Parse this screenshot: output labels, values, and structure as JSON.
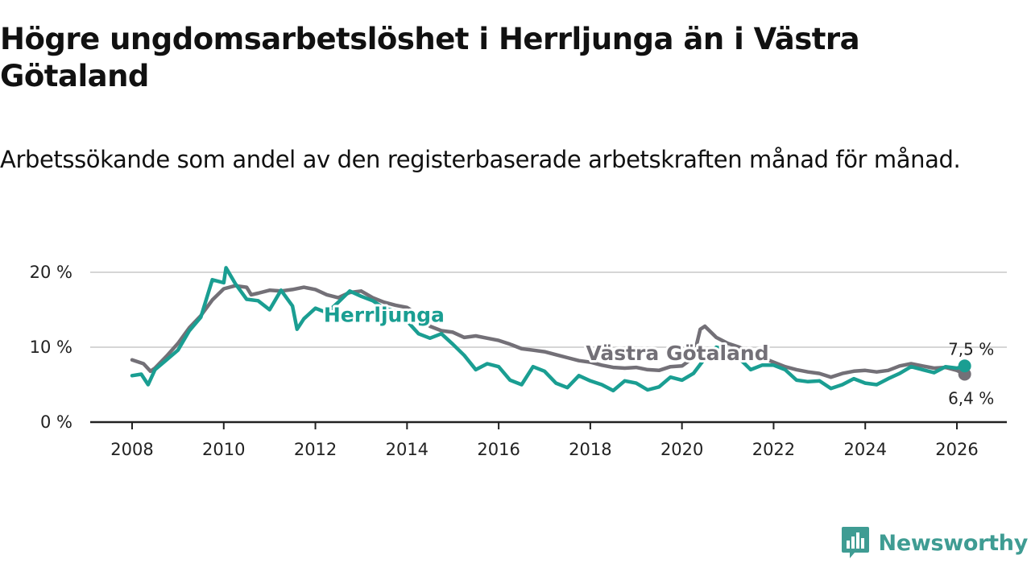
{
  "title": "Högre ungdomsarbetslöshet i Herrljunga än i Västra Götaland",
  "subtitle": "Arbetssökande som andel av den registerbaserade arbetskraften månad för månad.",
  "brand": {
    "name": "Newsworthy",
    "logo_icon": "newsworthy-chart-icon",
    "color": "#3f9c93"
  },
  "chart_data": {
    "type": "line",
    "title": "Högre ungdomsarbetslöshet i Herrljunga än i Västra Götaland",
    "subtitle": "Arbetssökande som andel av den registerbaserade arbetskraften månad för månad.",
    "xlabel": "",
    "ylabel": "",
    "xlim": [
      2007.5,
      2027.1
    ],
    "ylim": [
      0,
      20
    ],
    "grid": true,
    "x_ticks": [
      2008,
      2010,
      2012,
      2014,
      2016,
      2018,
      2020,
      2022,
      2024,
      2026
    ],
    "x_tick_labels": [
      "2008",
      "2010",
      "2012",
      "2014",
      "2016",
      "2018",
      "2020",
      "2022",
      "2024",
      "2026"
    ],
    "y_ticks": [
      0,
      10,
      20
    ],
    "y_tick_labels": [
      "0 %",
      "10 %",
      "20 %"
    ],
    "series": [
      {
        "name": "Västra Götaland",
        "color": "#737077",
        "end_label": "6,4 %",
        "points": [
          [
            2008.0,
            8.3
          ],
          [
            2008.25,
            7.8
          ],
          [
            2008.4,
            6.8
          ],
          [
            2008.5,
            7.2
          ],
          [
            2008.75,
            8.8
          ],
          [
            2009.0,
            10.5
          ],
          [
            2009.25,
            12.6
          ],
          [
            2009.5,
            14.2
          ],
          [
            2009.75,
            16.3
          ],
          [
            2010.0,
            17.8
          ],
          [
            2010.25,
            18.2
          ],
          [
            2010.5,
            18.0
          ],
          [
            2010.6,
            17.0
          ],
          [
            2010.75,
            17.2
          ],
          [
            2011.0,
            17.6
          ],
          [
            2011.25,
            17.5
          ],
          [
            2011.5,
            17.7
          ],
          [
            2011.75,
            18.0
          ],
          [
            2012.0,
            17.7
          ],
          [
            2012.25,
            17.0
          ],
          [
            2012.5,
            16.6
          ],
          [
            2012.75,
            17.3
          ],
          [
            2013.0,
            17.5
          ],
          [
            2013.25,
            16.6
          ],
          [
            2013.5,
            16.0
          ],
          [
            2013.75,
            15.6
          ],
          [
            2014.0,
            15.3
          ],
          [
            2014.25,
            14.3
          ],
          [
            2014.5,
            12.8
          ],
          [
            2014.75,
            12.2
          ],
          [
            2015.0,
            12.0
          ],
          [
            2015.25,
            11.3
          ],
          [
            2015.5,
            11.5
          ],
          [
            2015.75,
            11.2
          ],
          [
            2016.0,
            10.9
          ],
          [
            2016.25,
            10.4
          ],
          [
            2016.5,
            9.8
          ],
          [
            2016.75,
            9.6
          ],
          [
            2017.0,
            9.4
          ],
          [
            2017.25,
            9.0
          ],
          [
            2017.5,
            8.6
          ],
          [
            2017.75,
            8.2
          ],
          [
            2018.0,
            8.0
          ],
          [
            2018.25,
            7.6
          ],
          [
            2018.5,
            7.3
          ],
          [
            2018.75,
            7.2
          ],
          [
            2019.0,
            7.3
          ],
          [
            2019.25,
            7.0
          ],
          [
            2019.5,
            6.9
          ],
          [
            2019.75,
            7.4
          ],
          [
            2020.0,
            7.5
          ],
          [
            2020.25,
            8.6
          ],
          [
            2020.4,
            12.4
          ],
          [
            2020.5,
            12.8
          ],
          [
            2020.75,
            11.3
          ],
          [
            2021.0,
            10.5
          ],
          [
            2021.25,
            10.0
          ],
          [
            2021.5,
            9.3
          ],
          [
            2021.75,
            8.6
          ],
          [
            2022.0,
            8.0
          ],
          [
            2022.25,
            7.4
          ],
          [
            2022.5,
            7.0
          ],
          [
            2022.75,
            6.7
          ],
          [
            2023.0,
            6.5
          ],
          [
            2023.25,
            6.0
          ],
          [
            2023.5,
            6.5
          ],
          [
            2023.75,
            6.8
          ],
          [
            2024.0,
            6.9
          ],
          [
            2024.25,
            6.7
          ],
          [
            2024.5,
            6.9
          ],
          [
            2024.75,
            7.5
          ],
          [
            2025.0,
            7.8
          ],
          [
            2025.25,
            7.5
          ],
          [
            2025.5,
            7.2
          ],
          [
            2025.75,
            7.3
          ],
          [
            2026.0,
            6.9
          ],
          [
            2026.17,
            6.4
          ]
        ]
      },
      {
        "name": "Herrljunga",
        "color": "#1a9e92",
        "end_label": "7,5 %",
        "points": [
          [
            2008.0,
            6.2
          ],
          [
            2008.2,
            6.4
          ],
          [
            2008.35,
            5.0
          ],
          [
            2008.5,
            7.0
          ],
          [
            2008.75,
            8.3
          ],
          [
            2009.0,
            9.6
          ],
          [
            2009.25,
            12.2
          ],
          [
            2009.5,
            14.0
          ],
          [
            2009.75,
            19.0
          ],
          [
            2010.0,
            18.6
          ],
          [
            2010.05,
            20.6
          ],
          [
            2010.25,
            18.5
          ],
          [
            2010.5,
            16.4
          ],
          [
            2010.75,
            16.2
          ],
          [
            2011.0,
            15.0
          ],
          [
            2011.25,
            17.6
          ],
          [
            2011.5,
            15.5
          ],
          [
            2011.6,
            12.4
          ],
          [
            2011.75,
            13.8
          ],
          [
            2012.0,
            15.2
          ],
          [
            2012.25,
            14.6
          ],
          [
            2012.5,
            16.0
          ],
          [
            2012.75,
            17.5
          ],
          [
            2013.0,
            16.8
          ],
          [
            2013.25,
            16.2
          ],
          [
            2013.5,
            15.2
          ],
          [
            2013.75,
            14.8
          ],
          [
            2014.0,
            13.5
          ],
          [
            2014.25,
            11.8
          ],
          [
            2014.5,
            11.2
          ],
          [
            2014.75,
            11.8
          ],
          [
            2015.0,
            10.4
          ],
          [
            2015.25,
            8.9
          ],
          [
            2015.5,
            7.0
          ],
          [
            2015.75,
            7.8
          ],
          [
            2016.0,
            7.4
          ],
          [
            2016.25,
            5.6
          ],
          [
            2016.5,
            5.0
          ],
          [
            2016.75,
            7.4
          ],
          [
            2017.0,
            6.8
          ],
          [
            2017.25,
            5.2
          ],
          [
            2017.5,
            4.6
          ],
          [
            2017.75,
            6.2
          ],
          [
            2018.0,
            5.5
          ],
          [
            2018.25,
            5.0
          ],
          [
            2018.5,
            4.2
          ],
          [
            2018.75,
            5.5
          ],
          [
            2019.0,
            5.2
          ],
          [
            2019.25,
            4.3
          ],
          [
            2019.5,
            4.7
          ],
          [
            2019.75,
            6.0
          ],
          [
            2020.0,
            5.6
          ],
          [
            2020.25,
            6.5
          ],
          [
            2020.5,
            8.5
          ],
          [
            2020.75,
            10.0
          ],
          [
            2021.0,
            9.6
          ],
          [
            2021.25,
            8.5
          ],
          [
            2021.5,
            7.0
          ],
          [
            2021.75,
            7.6
          ],
          [
            2022.0,
            7.6
          ],
          [
            2022.25,
            7.0
          ],
          [
            2022.5,
            5.6
          ],
          [
            2022.75,
            5.4
          ],
          [
            2023.0,
            5.5
          ],
          [
            2023.25,
            4.5
          ],
          [
            2023.5,
            5.0
          ],
          [
            2023.75,
            5.8
          ],
          [
            2024.0,
            5.2
          ],
          [
            2024.25,
            5.0
          ],
          [
            2024.5,
            5.8
          ],
          [
            2024.75,
            6.5
          ],
          [
            2025.0,
            7.4
          ],
          [
            2025.25,
            7.0
          ],
          [
            2025.5,
            6.6
          ],
          [
            2025.75,
            7.4
          ],
          [
            2026.0,
            7.2
          ],
          [
            2026.17,
            7.5
          ]
        ]
      }
    ],
    "annotations": [
      {
        "text": "Herrljunga",
        "series": "Herrljunga",
        "x": 2013.5,
        "y": 13.4
      },
      {
        "text": "Västra Götaland",
        "series": "Västra Götaland",
        "x": 2019.9,
        "y": 8.3
      }
    ]
  }
}
